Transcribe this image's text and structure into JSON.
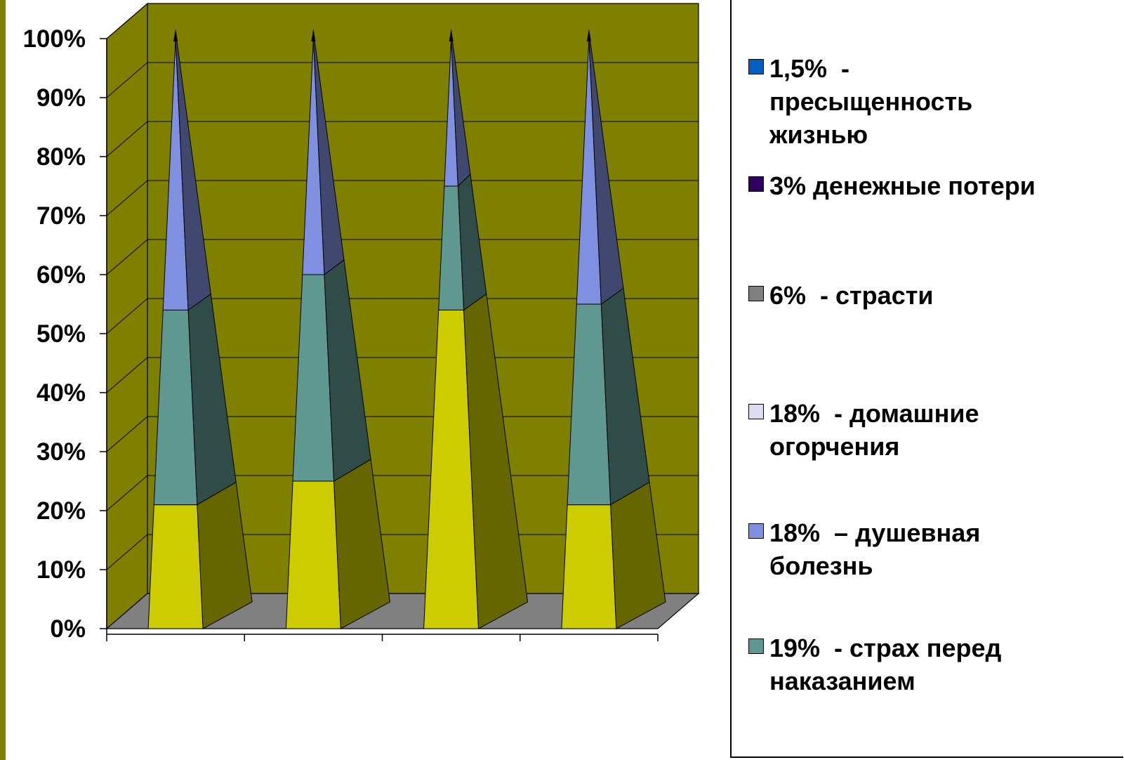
{
  "colors": {
    "background": "#ffffff",
    "wall": "#808000",
    "floor": "#808080",
    "stripe": "#808000"
  },
  "chart_data": {
    "type": "bar",
    "shape": "3d-pyramid-stacked-100",
    "y_ticks": [
      "0%",
      "10%",
      "20%",
      "30%",
      "40%",
      "50%",
      "60%",
      "70%",
      "80%",
      "90%",
      "100%"
    ],
    "ylim": [
      0,
      100
    ],
    "grid": true,
    "categories": [
      "",
      "",
      "",
      ""
    ],
    "series": [
      {
        "name": "",
        "color": "#cccc00",
        "values": [
          21,
          25,
          54,
          21
        ]
      },
      {
        "name": "19% - страх перед наказанием",
        "color": "#5f9890",
        "values": [
          33,
          35,
          21,
          34
        ]
      },
      {
        "name": "18% – душевная болезнь",
        "color": "#8090e0",
        "values": [
          46,
          40,
          25,
          45
        ]
      }
    ],
    "legend_position": "right",
    "legend": [
      {
        "label": "1,5%  -\nпресыщенность\nжизнью",
        "color": "#0060c0"
      },
      {
        "label": "3% денежные потери",
        "color": "#300060"
      },
      {
        "label": "6%  - страсти",
        "color": "#808080"
      },
      {
        "label": "18%  - домашние\nогорчения",
        "color": "#dcdcf0"
      },
      {
        "label": "18%  – душевная\nболезнь",
        "color": "#8090e0"
      },
      {
        "label": "19%  - страх перед\nнаказанием",
        "color": "#5f9890"
      }
    ]
  }
}
